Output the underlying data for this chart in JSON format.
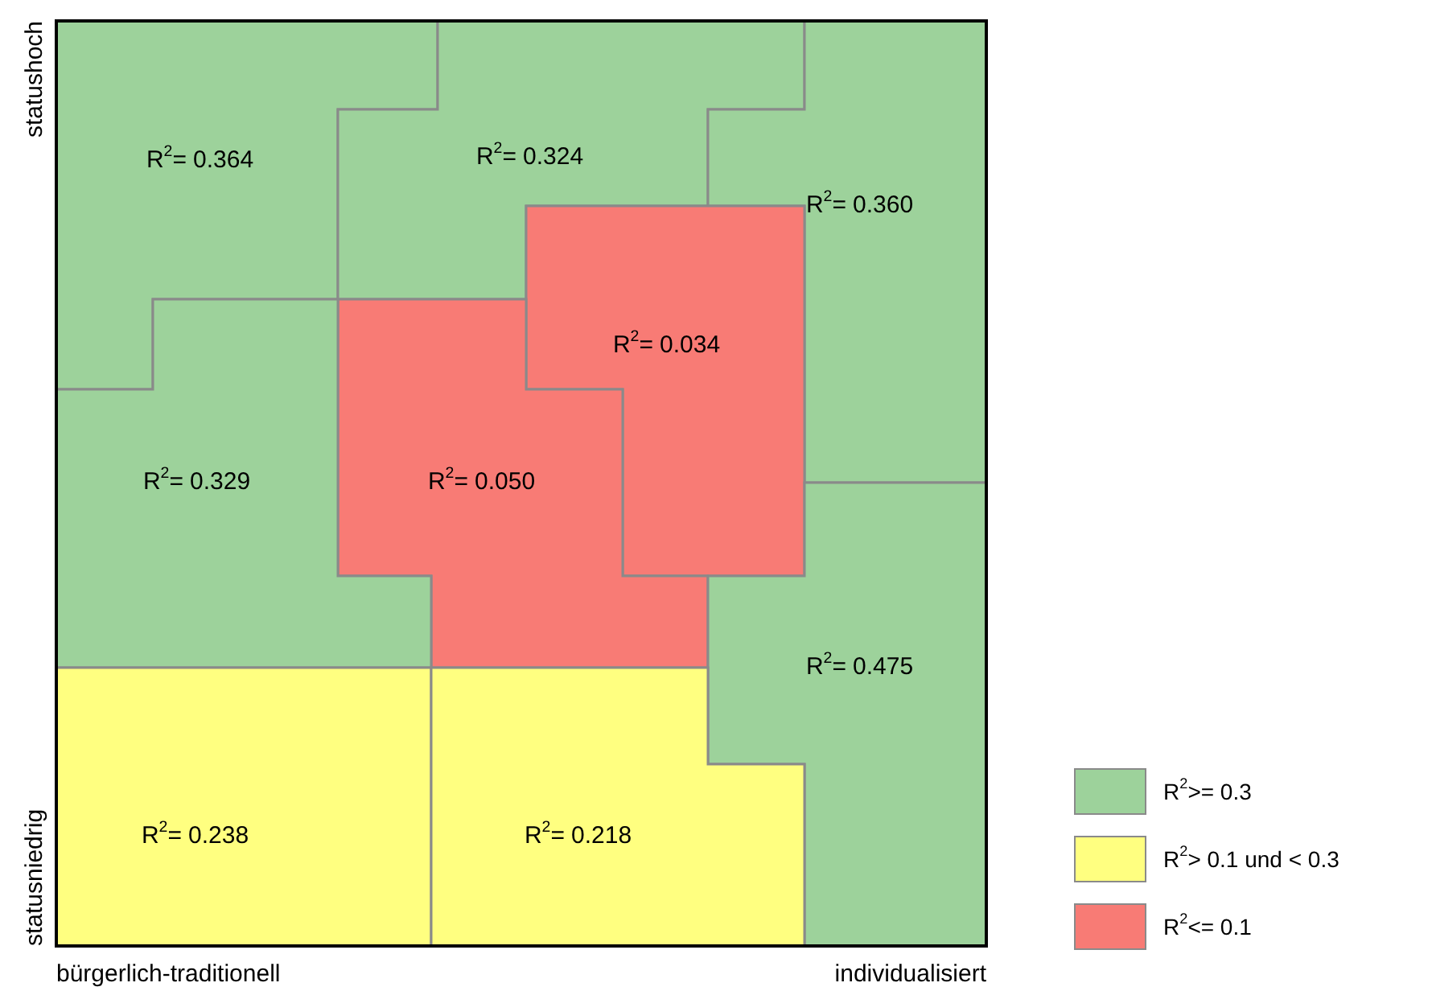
{
  "chart_data": {
    "type": "other",
    "categories": [
      "R$^{2}$=",
      "R$^{2}$=",
      "R$^{2}$=",
      "R$^{2}$=",
      "R$^{2}$=",
      "R$^{2}$=",
      "R$^{2}$=",
      "R$^{2}$=",
      "R$^{2}$="
    ],
    "series": [
      {
        "name": "R$^{2}$>= 0.3",
        "color": "#9dd29b",
        "values": [
          0.364,
          0.324,
          0.36,
          null,
          null,
          0.329,
          0.475,
          null,
          null
        ],
        "value_labels": [
          "0.364",
          "0.324",
          "0.360",
          null,
          null,
          "0.329",
          "0.475",
          null,
          null
        ]
      },
      {
        "name": "R$^{2}$> 0.1 und < 0.3",
        "color": "#ffff80",
        "values": [
          null,
          null,
          null,
          null,
          null,
          null,
          null,
          0.238,
          0.218
        ],
        "value_labels": [
          null,
          null,
          null,
          null,
          null,
          null,
          null,
          "0.238",
          "0.218"
        ]
      },
      {
        "name": "R$^{2}$<= 0.1",
        "color": "#f87b75",
        "values": [
          null,
          null,
          null,
          0.034,
          0.05,
          null,
          null,
          null,
          null
        ],
        "value_labels": [
          null,
          null,
          null,
          "0.034",
          "0.050",
          null,
          null,
          null,
          null
        ]
      }
    ],
    "data_labels": true,
    "annotations": [
      "statushoch",
      "statusniedrig",
      "bürgerlich-traditionell",
      "individualisiert"
    ],
    "legend": "bottom right"
  }
}
